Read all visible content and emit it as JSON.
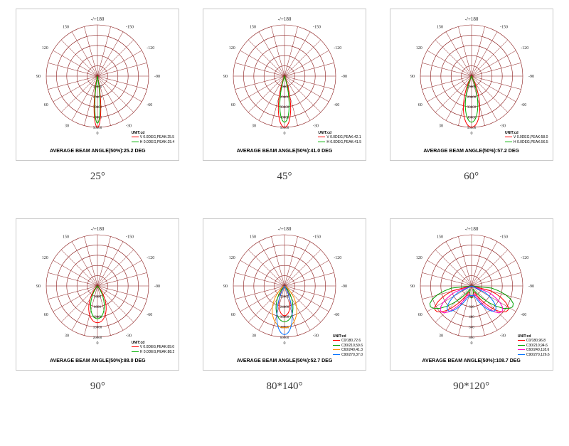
{
  "grid_color": "#8a1a1a",
  "background": "#ffffff",
  "angle_labels": [
    "-/+180",
    "-150",
    "150",
    "-120",
    "120",
    "-90",
    "90",
    "-60",
    "60",
    "-30",
    "30",
    "0"
  ],
  "cells": [
    {
      "caption": "25°",
      "foot": "AVERAGE BEAM ANGLE(50%):25.2 DEG",
      "top_label": "-/+180",
      "rings": 5,
      "ring_labels": [
        "10000",
        "20000",
        "30000",
        "40000",
        "50000"
      ],
      "lobes": [
        {
          "color": "#ff0000",
          "half_deg": 13,
          "rel": 1.0
        },
        {
          "color": "#00b000",
          "half_deg": 11,
          "rel": 0.92
        }
      ],
      "legend": {
        "pos": "br",
        "title": "UNIT:cd",
        "lines": [
          {
            "color": "#ff0000",
            "text": "V 0.0DEG,PEAK:25.5"
          },
          {
            "color": "#00b000",
            "text": "H 0.0DEG,PEAK:25.4"
          }
        ]
      }
    },
    {
      "caption": "45°",
      "foot": "AVERAGE BEAM ANGLE(50%):41.0 DEG",
      "top_label": "-/+180",
      "rings": 5,
      "ring_labels": [
        "10000",
        "20000",
        "30000",
        "40000",
        "50000"
      ],
      "lobes": [
        {
          "color": "#ff0000",
          "half_deg": 24,
          "rel": 1.0
        },
        {
          "color": "#00b000",
          "half_deg": 20,
          "rel": 0.9
        }
      ],
      "legend": {
        "pos": "br",
        "title": "UNIT:cd",
        "lines": [
          {
            "color": "#ff0000",
            "text": "V 0.0DEG,PEAK:42.1"
          },
          {
            "color": "#00b000",
            "text": "H 0.0DEG,PEAK:41.5"
          }
        ]
      }
    },
    {
      "caption": "60°",
      "foot": "AVERAGE BEAM ANGLE(50%):57.2 DEG",
      "top_label": "-/+180",
      "rings": 5,
      "ring_labels": [
        "10000",
        "20000",
        "30000",
        "40000",
        "50000"
      ],
      "lobes": [
        {
          "color": "#ff0000",
          "half_deg": 32,
          "rel": 1.0
        },
        {
          "color": "#00b000",
          "half_deg": 27,
          "rel": 0.9
        }
      ],
      "legend": {
        "pos": "br",
        "title": "UNIT:cd",
        "lines": [
          {
            "color": "#ff0000",
            "text": "V 0.0DEG,PEAK:58.0"
          },
          {
            "color": "#00b000",
            "text": "H 0.0DEG,PEAK:56.5"
          }
        ]
      }
    },
    {
      "caption": "90°",
      "foot": "AVERAGE BEAM ANGLE(50%):88.0 DEG",
      "top_label": "-/+180",
      "rings": 5,
      "ring_labels": [
        "4000",
        "8000",
        "12000",
        "16000",
        "20000"
      ],
      "lobes": [
        {
          "color": "#ff0000",
          "half_deg": 48,
          "rel": 0.72
        },
        {
          "color": "#00b000",
          "half_deg": 42,
          "rel": 0.64
        }
      ],
      "legend": {
        "pos": "br",
        "title": "UNIT:cd",
        "lines": [
          {
            "color": "#ff0000",
            "text": "V 0.0DEG,PEAK:89.0"
          },
          {
            "color": "#00b000",
            "text": "H 0.0DEG,PEAK:88.2"
          }
        ]
      }
    },
    {
      "caption": "80*140°",
      "foot": "AVERAGE BEAM ANGLE(50%):52.7 DEG",
      "top_label": "-/+180",
      "rings": 5,
      "ring_labels": [
        "12000",
        "24000",
        "36000",
        "48000",
        "60000"
      ],
      "lobes": [
        {
          "color": "#ff0000",
          "half_deg": 38,
          "rel": 0.58
        },
        {
          "color": "#00a000",
          "half_deg": 48,
          "rel": 0.7
        },
        {
          "color": "#ff9000",
          "half_deg": 60,
          "rel": 0.82
        },
        {
          "color": "#0070ff",
          "half_deg": 32,
          "rel": 0.95
        }
      ],
      "legend": {
        "pos": "brx",
        "title": "UNIT:cd",
        "lines": [
          {
            "color": "#ff0000",
            "text": "C0/180,72.6"
          },
          {
            "color": "#00a000",
            "text": "C30/210,59.6"
          },
          {
            "color": "#ff9000",
            "text": "C60/240,41.3"
          },
          {
            "color": "#0070ff",
            "text": "C90/270,37.0"
          }
        ]
      }
    },
    {
      "caption": "90*120°",
      "foot": "AVERAGE BEAM ANGLE(50%):108.7 DEG",
      "top_label": "-/+180",
      "rings": 5,
      "ring_labels": [
        "160",
        "320",
        "480",
        "640",
        "800"
      ],
      "lobes": [],
      "butterfly": [
        {
          "color": "#ff0000",
          "spread": 56,
          "rel": 0.9
        },
        {
          "color": "#00a000",
          "spread": 64,
          "rel": 0.95
        },
        {
          "color": "#ff00c0",
          "spread": 50,
          "rel": 0.82
        },
        {
          "color": "#0070ff",
          "spread": 44,
          "rel": 0.7
        }
      ],
      "legend": {
        "pos": "brx",
        "title": "UNIT:cd",
        "lines": [
          {
            "color": "#ff0000",
            "text": "C0/180,96.8"
          },
          {
            "color": "#00a000",
            "text": "C30/210,94.6"
          },
          {
            "color": "#ff00c0",
            "text": "C60/240,118.6"
          },
          {
            "color": "#0070ff",
            "text": "C90/270,126.6"
          }
        ]
      }
    }
  ]
}
